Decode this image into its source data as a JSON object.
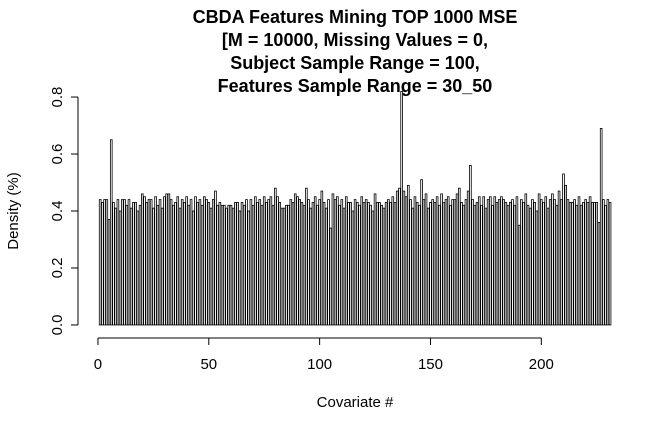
{
  "chart_data": {
    "type": "bar",
    "title": [
      "CBDA Features Mining TOP 1000 MSE",
      "[M = 10000, Missing Values = 0,",
      "Subject Sample Range = 100,",
      "Features Sample Range = 30_50"
    ],
    "xlabel": "Covariate #",
    "ylabel": "Density (%)",
    "x": [
      1,
      2,
      3,
      4,
      5,
      6,
      7,
      8,
      9,
      10,
      11,
      12,
      13,
      14,
      15,
      16,
      17,
      18,
      19,
      20,
      21,
      22,
      23,
      24,
      25,
      26,
      27,
      28,
      29,
      30,
      31,
      32,
      33,
      34,
      35,
      36,
      37,
      38,
      39,
      40,
      41,
      42,
      43,
      44,
      45,
      46,
      47,
      48,
      49,
      50,
      51,
      52,
      53,
      54,
      55,
      56,
      57,
      58,
      59,
      60,
      61,
      62,
      63,
      64,
      65,
      66,
      67,
      68,
      69,
      70,
      71,
      72,
      73,
      74,
      75,
      76,
      77,
      78,
      79,
      80,
      81,
      82,
      83,
      84,
      85,
      86,
      87,
      88,
      89,
      90,
      91,
      92,
      93,
      94,
      95,
      96,
      97,
      98,
      99,
      100,
      101,
      102,
      103,
      104,
      105,
      106,
      107,
      108,
      109,
      110,
      111,
      112,
      113,
      114,
      115,
      116,
      117,
      118,
      119,
      120,
      121,
      122,
      123,
      124,
      125,
      126,
      127,
      128,
      129,
      130,
      131,
      132,
      133,
      134,
      135,
      136,
      137,
      138,
      139,
      140,
      141,
      142,
      143,
      144,
      145,
      146,
      147,
      148,
      149,
      150,
      151,
      152,
      153,
      154,
      155,
      156,
      157,
      158,
      159,
      160,
      161,
      162,
      163,
      164,
      165,
      166,
      167,
      168,
      169,
      170,
      171,
      172,
      173,
      174,
      175,
      176,
      177,
      178,
      179,
      180,
      181,
      182,
      183,
      184,
      185,
      186,
      187,
      188,
      189,
      190,
      191,
      192,
      193,
      194,
      195,
      196,
      197,
      198,
      199,
      200,
      201,
      202,
      203,
      204,
      205,
      206,
      207,
      208,
      209,
      210,
      211,
      212,
      213,
      214,
      215,
      216,
      217,
      218,
      219,
      220,
      221,
      222,
      223,
      224,
      225,
      226,
      227,
      228,
      229,
      230,
      231
    ],
    "values": [
      0.44,
      0.43,
      0.44,
      0.44,
      0.37,
      0.65,
      0.43,
      0.41,
      0.44,
      0.4,
      0.44,
      0.44,
      0.42,
      0.44,
      0.41,
      0.43,
      0.43,
      0.4,
      0.42,
      0.46,
      0.45,
      0.43,
      0.44,
      0.44,
      0.41,
      0.45,
      0.42,
      0.44,
      0.41,
      0.45,
      0.46,
      0.46,
      0.44,
      0.42,
      0.43,
      0.45,
      0.41,
      0.44,
      0.43,
      0.45,
      0.42,
      0.44,
      0.4,
      0.45,
      0.43,
      0.44,
      0.42,
      0.45,
      0.44,
      0.43,
      0.41,
      0.44,
      0.47,
      0.42,
      0.43,
      0.42,
      0.42,
      0.41,
      0.42,
      0.42,
      0.41,
      0.43,
      0.43,
      0.4,
      0.43,
      0.42,
      0.44,
      0.4,
      0.44,
      0.42,
      0.45,
      0.43,
      0.44,
      0.42,
      0.45,
      0.43,
      0.44,
      0.45,
      0.42,
      0.48,
      0.45,
      0.43,
      0.41,
      0.41,
      0.42,
      0.42,
      0.44,
      0.43,
      0.46,
      0.45,
      0.44,
      0.43,
      0.42,
      0.48,
      0.44,
      0.41,
      0.43,
      0.45,
      0.42,
      0.44,
      0.47,
      0.43,
      0.41,
      0.44,
      0.34,
      0.46,
      0.44,
      0.45,
      0.42,
      0.44,
      0.41,
      0.45,
      0.43,
      0.43,
      0.4,
      0.44,
      0.43,
      0.42,
      0.45,
      0.43,
      0.44,
      0.43,
      0.42,
      0.4,
      0.46,
      0.43,
      0.43,
      0.42,
      0.41,
      0.43,
      0.44,
      0.43,
      0.45,
      0.43,
      0.47,
      0.48,
      0.82,
      0.47,
      0.45,
      0.49,
      0.44,
      0.41,
      0.45,
      0.43,
      0.42,
      0.51,
      0.44,
      0.46,
      0.41,
      0.43,
      0.44,
      0.43,
      0.45,
      0.42,
      0.46,
      0.43,
      0.44,
      0.45,
      0.42,
      0.44,
      0.44,
      0.46,
      0.48,
      0.43,
      0.42,
      0.44,
      0.47,
      0.56,
      0.44,
      0.42,
      0.43,
      0.45,
      0.42,
      0.45,
      0.41,
      0.44,
      0.45,
      0.42,
      0.45,
      0.43,
      0.44,
      0.45,
      0.44,
      0.43,
      0.42,
      0.43,
      0.44,
      0.42,
      0.45,
      0.35,
      0.44,
      0.43,
      0.46,
      0.42,
      0.41,
      0.44,
      0.43,
      0.4,
      0.46,
      0.44,
      0.43,
      0.45,
      0.41,
      0.44,
      0.46,
      0.44,
      0.42,
      0.47,
      0.44,
      0.53,
      0.49,
      0.44,
      0.43,
      0.43,
      0.44,
      0.42,
      0.45,
      0.42,
      0.43,
      0.44,
      0.43,
      0.45,
      0.43,
      0.43,
      0.43,
      0.36,
      0.69,
      0.44,
      0.42,
      0.44,
      0.43
    ],
    "color": "#000000",
    "xlim": [
      -9,
      240
    ],
    "xticks": [
      0,
      50,
      100,
      150,
      200
    ],
    "ylim": [
      -0.03,
      0.83
    ],
    "yticks": [
      {
        "value": 0,
        "label": "0.0"
      },
      0.2,
      0.4,
      0.6,
      0.8
    ]
  }
}
